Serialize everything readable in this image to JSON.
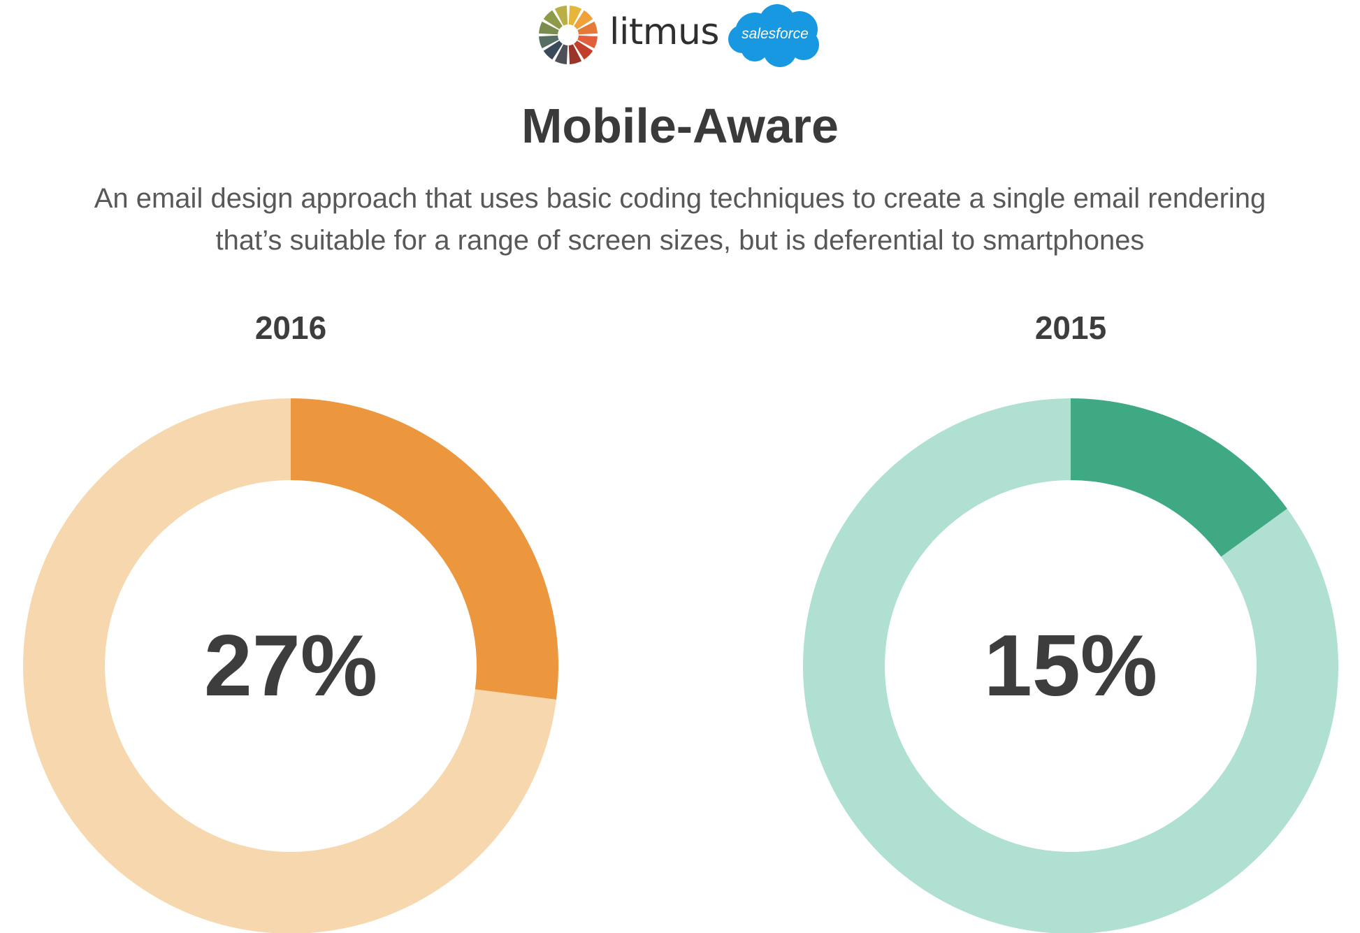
{
  "header": {
    "litmus_label": "litmus",
    "salesforce_label": "salesforce"
  },
  "title": "Mobile-Aware",
  "subtitle_line1": "An email design approach that uses basic coding techniques to create a single email rendering",
  "subtitle_line2": "that’s suitable for a range of screen sizes, but is deferential to smartphones",
  "colors": {
    "orange": "#ec963e",
    "orange_light": "#f7d8ae",
    "green": "#3fa984",
    "green_light": "#afe0d2",
    "text_dark": "#3d3d3d",
    "salesforce_blue": "#1798e0"
  },
  "chart_data": [
    {
      "type": "pie",
      "title": "2016",
      "center_label": "27%",
      "values": [
        27,
        73
      ],
      "colors": [
        "#ec963e",
        "#f7d8ae"
      ]
    },
    {
      "type": "pie",
      "title": "2015",
      "center_label": "15%",
      "values": [
        15,
        85
      ],
      "colors": [
        "#3fa984",
        "#afe0d2"
      ]
    }
  ]
}
